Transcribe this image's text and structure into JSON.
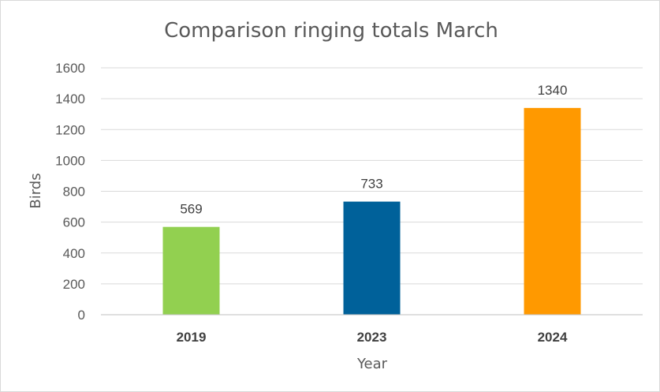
{
  "chart_data": {
    "type": "bar",
    "title": "Comparison ringing totals March",
    "xlabel": "Year",
    "ylabel": "Birds",
    "categories": [
      "2019",
      "2023",
      "2024"
    ],
    "values": [
      569,
      733,
      1340
    ],
    "colors": [
      "#92d050",
      "#00619a",
      "#ff9900"
    ],
    "ylim": [
      0,
      1600
    ],
    "yticks": [
      "0",
      "200",
      "400",
      "600",
      "800",
      "1000",
      "1200",
      "1400",
      "1600"
    ],
    "grid": true,
    "legend": "none"
  }
}
